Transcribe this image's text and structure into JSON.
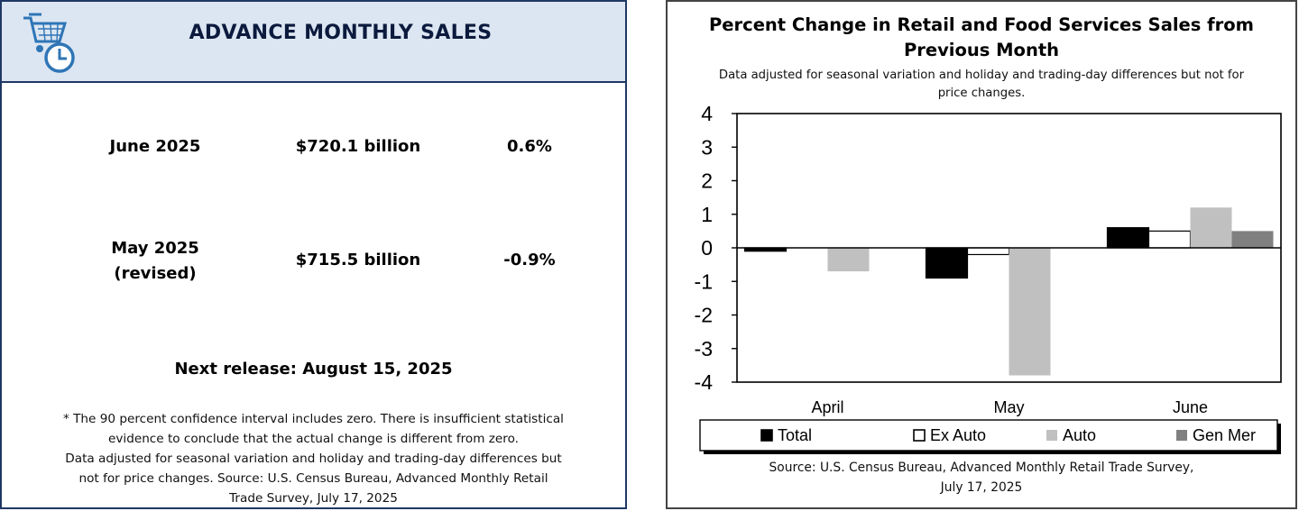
{
  "left": {
    "title": "ADVANCE MONTHLY SALES",
    "rows": [
      {
        "period": "June 2025",
        "period_note": "",
        "sales": "$720.1 billion",
        "change": "0.6%"
      },
      {
        "period": "May 2025",
        "period_note": "(revised)",
        "sales": "$715.5 billion",
        "change": "-0.9%"
      }
    ],
    "next_release": "Next release: August 15, 2025",
    "footnote_lines": [
      "* The 90 percent confidence interval includes zero. There is insufficient statistical",
      "evidence to conclude that the actual change is different from zero.",
      "Data adjusted for seasonal variation and holiday and trading-day differences but",
      "not for price changes. Source: U.S. Census Bureau, Advanced Monthly Retail",
      "Trade Survey, July 17, 2025"
    ]
  },
  "chart_data": {
    "type": "bar",
    "title_lines": [
      "Percent Change in Retail and Food Services Sales from",
      "Previous Month"
    ],
    "subtitle_lines": [
      "Data adjusted for seasonal variation and holiday and trading-day differences but not for",
      "price changes."
    ],
    "categories": [
      "April",
      "May",
      "June"
    ],
    "series": [
      {
        "name": "Total",
        "color": "#000000",
        "values": [
          -0.1,
          -0.9,
          0.6
        ]
      },
      {
        "name": "Ex Auto",
        "color": "#ffffff",
        "values": [
          0.0,
          -0.2,
          0.5
        ]
      },
      {
        "name": "Auto",
        "color": "#c0c0c0",
        "values": [
          -0.7,
          -3.8,
          1.2
        ]
      },
      {
        "name": "Gen Mer",
        "color": "#808080",
        "values": [
          0.0,
          0.0,
          0.5
        ]
      }
    ],
    "ylim": [
      -4,
      4
    ],
    "yticks": [
      "4",
      "3",
      "2",
      "1",
      "0",
      "-1",
      "-2",
      "-3",
      "-4"
    ],
    "ytick_values": [
      4,
      3,
      2,
      1,
      0,
      -1,
      -2,
      -3,
      -4
    ],
    "legend_position": "bottom",
    "grid": false,
    "source_lines": [
      "Source: U.S. Census Bureau, Advanced Monthly Retail Trade Survey,",
      "July 17, 2025"
    ]
  }
}
